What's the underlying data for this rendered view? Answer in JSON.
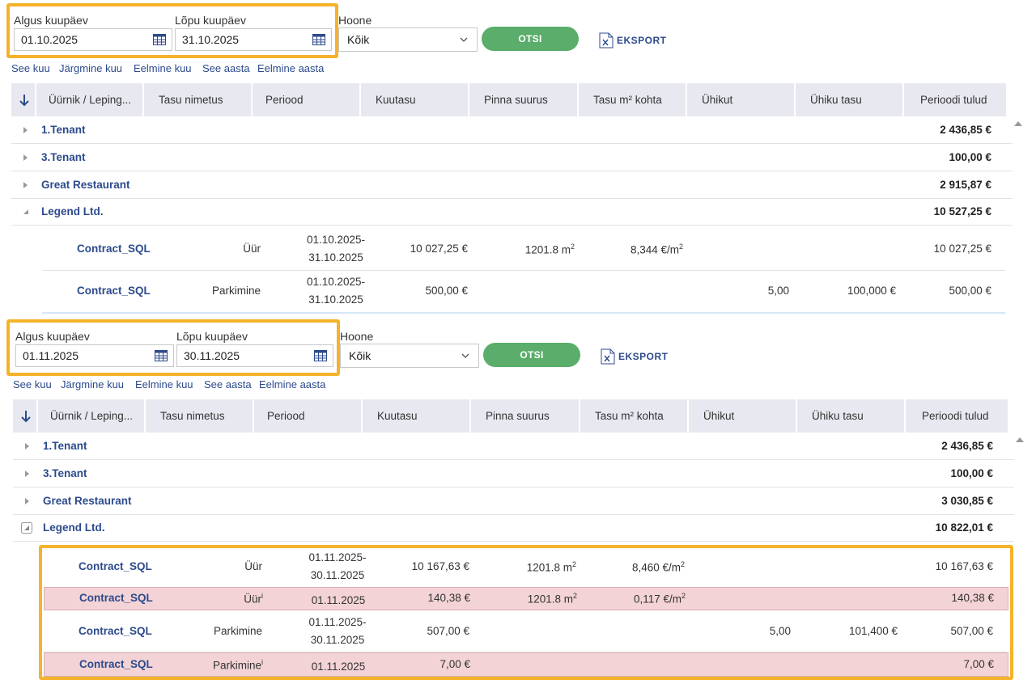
{
  "filters": {
    "start_label": "Algus kuupäev",
    "end_label": "Lõpu kuupäev",
    "building_label": "Hoone",
    "building_value": "Kõik",
    "search_button": "OTSI",
    "export_button": "EKSPORT"
  },
  "quick_links": [
    "See kuu",
    "Järgmine kuu",
    "Eelmine kuu",
    "See aasta",
    "Eelmine aasta"
  ],
  "columns": [
    "Üürnik / Leping...",
    "Tasu nimetus",
    "Periood",
    "Kuutasu",
    "Pinna suurus",
    "Tasu m² kohta",
    "Ühikut",
    "Ühiku tasu",
    "Perioodi tulud"
  ],
  "panel1": {
    "start_date": "01.10.2025",
    "end_date": "31.10.2025",
    "groups": [
      {
        "name": "1.Tenant",
        "total": "2 436,85 €"
      },
      {
        "name": "3.Tenant",
        "total": "100,00 €"
      },
      {
        "name": "Great Restaurant",
        "total": "2 915,87 €"
      },
      {
        "name": "Legend Ltd.",
        "total": "10 527,25 €"
      }
    ],
    "rows": [
      {
        "contract": "Contract_SQL",
        "name": "Üür",
        "period_start": "01.10.2025-",
        "period_end": "31.10.2025",
        "kuutasu": "10 027,25 €",
        "pind": "1201.8 m",
        "pind_sup": "2",
        "m2": "8,344 €/m",
        "m2_sup": "2",
        "uhikut": "",
        "uhtasu": "",
        "tulud": "10 027,25 €"
      },
      {
        "contract": "Contract_SQL",
        "name": "Parkimine",
        "period_start": "01.10.2025-",
        "period_end": "31.10.2025",
        "kuutasu": "500,00 €",
        "pind": "",
        "pind_sup": "",
        "m2": "",
        "m2_sup": "",
        "uhikut": "5,00",
        "uhtasu": "100,000 €",
        "tulud": "500,00 €"
      }
    ]
  },
  "panel2": {
    "start_date": "01.11.2025",
    "end_date": "30.11.2025",
    "groups": [
      {
        "name": "1.Tenant",
        "total": "2 436,85 €"
      },
      {
        "name": "3.Tenant",
        "total": "100,00 €"
      },
      {
        "name": "Great Restaurant",
        "total": "3 030,85 €"
      },
      {
        "name": "Legend Ltd.",
        "total": "10 822,01 €"
      }
    ],
    "rows": [
      {
        "contract": "Contract_SQL",
        "name": "Üür",
        "name_sup": "",
        "period_start": "01.11.2025-",
        "period_end": "30.11.2025",
        "kuutasu": "10 167,63 €",
        "pind": "1201.8 m",
        "pind_sup": "2",
        "m2": "8,460 €/m",
        "m2_sup": "2",
        "uhikut": "",
        "uhtasu": "",
        "tulud": "10 167,63 €"
      },
      {
        "contract": "Contract_SQL",
        "name": "Üür",
        "name_sup": "i",
        "period": "01.11.2025",
        "kuutasu": "140,38 €",
        "pind": "1201.8 m",
        "pind_sup": "2",
        "m2": "0,117 €/m",
        "m2_sup": "2",
        "uhikut": "",
        "uhtasu": "",
        "tulud": "140,38 €"
      },
      {
        "contract": "Contract_SQL",
        "name": "Parkimine",
        "name_sup": "",
        "period_start": "01.11.2025-",
        "period_end": "30.11.2025",
        "kuutasu": "507,00 €",
        "pind": "",
        "pind_sup": "",
        "m2": "",
        "m2_sup": "",
        "uhikut": "5,00",
        "uhtasu": "101,400 €",
        "tulud": "507,00 €"
      },
      {
        "contract": "Contract_SQL",
        "name": "Parkimine",
        "name_sup": "i",
        "period": "01.11.2025",
        "kuutasu": "7,00 €",
        "pind": "",
        "pind_sup": "",
        "m2": "",
        "m2_sup": "",
        "uhikut": "",
        "uhtasu": "",
        "tulud": "7,00 €"
      }
    ]
  },
  "colors": {
    "accent": "#2c4a8c",
    "button_green": "#5aad6a",
    "highlight": "#f4b32a",
    "row_pink": "#f3d3d6",
    "header_bg": "#e8e9f0"
  },
  "icons": [
    "calendar-icon",
    "chevron-down-icon",
    "excel-icon",
    "sort-arrow-icon",
    "expand-arrow-icon",
    "collapse-arrow-icon"
  ]
}
